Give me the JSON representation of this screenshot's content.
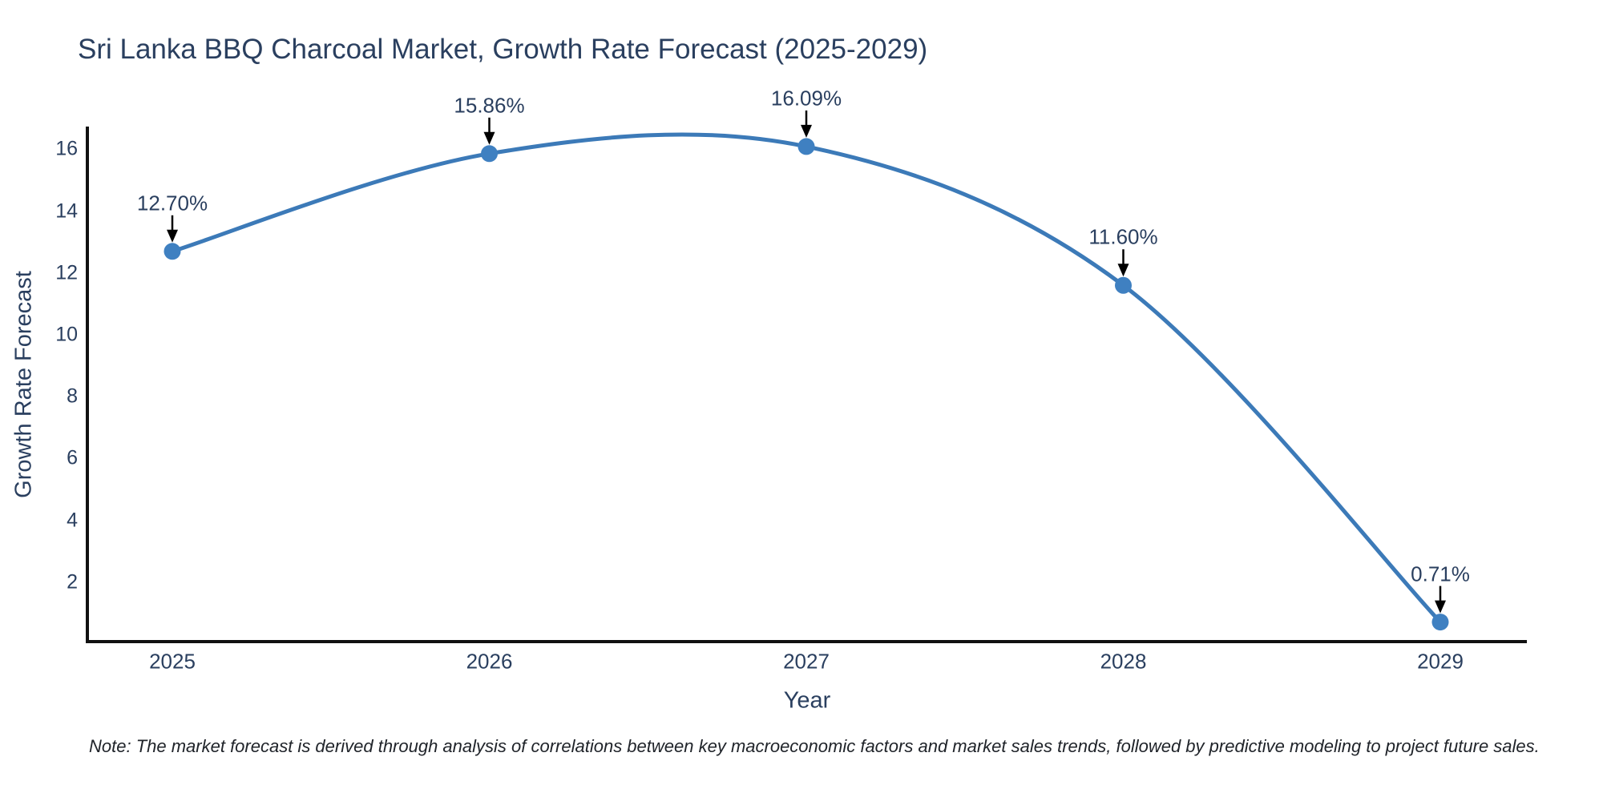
{
  "note": "Note: The market forecast is derived through analysis of correlations between key macroeconomic factors and market sales trends, followed by predictive modeling to project future sales.",
  "chart_data": {
    "type": "line",
    "title": "Sri Lanka BBQ Charcoal Market, Growth Rate Forecast (2025-2029)",
    "xlabel": "Year",
    "ylabel": "Growth Rate Forecast",
    "x": [
      "2025",
      "2026",
      "2027",
      "2028",
      "2029"
    ],
    "series": [
      {
        "name": "Growth Rate Forecast",
        "values": [
          12.7,
          15.86,
          16.09,
          11.6,
          0.71
        ]
      }
    ],
    "point_labels": [
      "12.70%",
      "15.86%",
      "16.09%",
      "11.60%",
      "0.71%"
    ],
    "yticks": [
      2,
      4,
      6,
      8,
      10,
      12,
      14,
      16
    ],
    "ylim": [
      0,
      16.7
    ],
    "line_shape": "spline",
    "grid": false,
    "legend_position": "none",
    "colors": {
      "line": "#3c7ab8",
      "marker": "#3f80c1",
      "axis": "#111111",
      "arrow": "#000000",
      "label_text": "#2a3f5f",
      "background": "#ffffff"
    }
  }
}
